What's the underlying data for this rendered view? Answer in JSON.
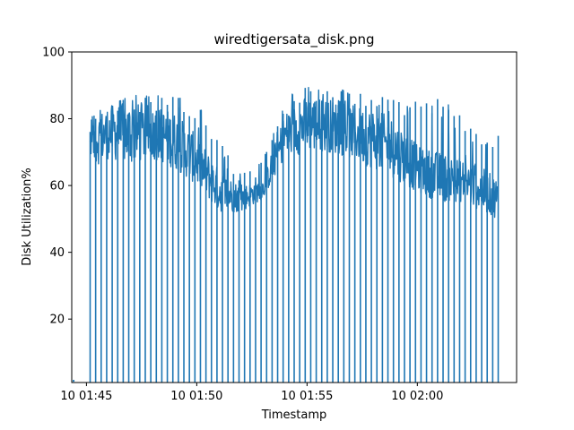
{
  "chart_data": {
    "type": "line",
    "title": "wiredtigersata_disk.png",
    "xlabel": "Timestamp",
    "ylabel": "Disk Utilization%",
    "ylim": [
      1,
      100
    ],
    "xlim": [
      "10 01:44:20",
      "10 02:04:30"
    ],
    "yticks": [
      20,
      40,
      60,
      80,
      100
    ],
    "xticks": [
      "10 01:45",
      "10 01:50",
      "10 01:55",
      "10 02:00"
    ],
    "grid": false,
    "line_color": "#1f77b4",
    "series": [
      {
        "name": "",
        "envelope": [
          {
            "t": "10 01:45:10",
            "min": 0,
            "max": 80
          },
          {
            "t": "10 01:46:00",
            "min": 0,
            "max": 86
          },
          {
            "t": "10 01:47:00",
            "min": 0,
            "max": 87
          },
          {
            "t": "10 01:48:00",
            "min": 0,
            "max": 87
          },
          {
            "t": "10 01:49:00",
            "min": 0,
            "max": 88
          },
          {
            "t": "10 01:50:00",
            "min": 0,
            "max": 85
          },
          {
            "t": "10 01:51:00",
            "min": 0,
            "max": 75
          },
          {
            "t": "10 01:52:00",
            "min": 0,
            "max": 66
          },
          {
            "t": "10 01:53:00",
            "min": 0,
            "max": 68
          },
          {
            "t": "10 01:54:00",
            "min": 0,
            "max": 86
          },
          {
            "t": "10 01:55:00",
            "min": 0,
            "max": 91
          },
          {
            "t": "10 01:56:00",
            "min": 0,
            "max": 90
          },
          {
            "t": "10 01:57:00",
            "min": 0,
            "max": 88
          },
          {
            "t": "10 01:58:00",
            "min": 0,
            "max": 88
          },
          {
            "t": "10 01:59:00",
            "min": 0,
            "max": 88
          },
          {
            "t": "10 02:00:00",
            "min": 0,
            "max": 85
          },
          {
            "t": "10 02:01:00",
            "min": 0,
            "max": 86
          },
          {
            "t": "10 02:02:00",
            "min": 0,
            "max": 82
          },
          {
            "t": "10 02:03:00",
            "min": 0,
            "max": 77
          },
          {
            "t": "10 02:03:40",
            "min": 0,
            "max": 75
          }
        ],
        "upper_band": [
          {
            "t": "10 01:45:10",
            "lo": 65,
            "hi": 80
          },
          {
            "t": "10 01:46:00",
            "lo": 68,
            "hi": 84
          },
          {
            "t": "10 01:47:00",
            "lo": 66,
            "hi": 85
          },
          {
            "t": "10 01:48:00",
            "lo": 68,
            "hi": 84
          },
          {
            "t": "10 01:49:00",
            "lo": 65,
            "hi": 82
          },
          {
            "t": "10 01:50:00",
            "lo": 60,
            "hi": 75
          },
          {
            "t": "10 01:51:00",
            "lo": 52,
            "hi": 65
          },
          {
            "t": "10 01:52:00",
            "lo": 52,
            "hi": 60
          },
          {
            "t": "10 01:53:00",
            "lo": 56,
            "hi": 62
          },
          {
            "t": "10 01:54:00",
            "lo": 68,
            "hi": 82
          },
          {
            "t": "10 01:55:00",
            "lo": 70,
            "hi": 87
          },
          {
            "t": "10 01:56:00",
            "lo": 70,
            "hi": 86
          },
          {
            "t": "10 01:57:00",
            "lo": 68,
            "hi": 84
          },
          {
            "t": "10 01:58:00",
            "lo": 65,
            "hi": 83
          },
          {
            "t": "10 01:59:00",
            "lo": 62,
            "hi": 80
          },
          {
            "t": "10 02:00:00",
            "lo": 58,
            "hi": 72
          },
          {
            "t": "10 02:01:00",
            "lo": 55,
            "hi": 70
          },
          {
            "t": "10 02:02:00",
            "lo": 55,
            "hi": 68
          },
          {
            "t": "10 02:03:00",
            "lo": 52,
            "hi": 65
          },
          {
            "t": "10 02:03:40",
            "lo": 50,
            "hi": 62
          }
        ],
        "isolated_points": [
          {
            "t": "10 01:44:25",
            "y": 1.5
          }
        ]
      }
    ]
  }
}
